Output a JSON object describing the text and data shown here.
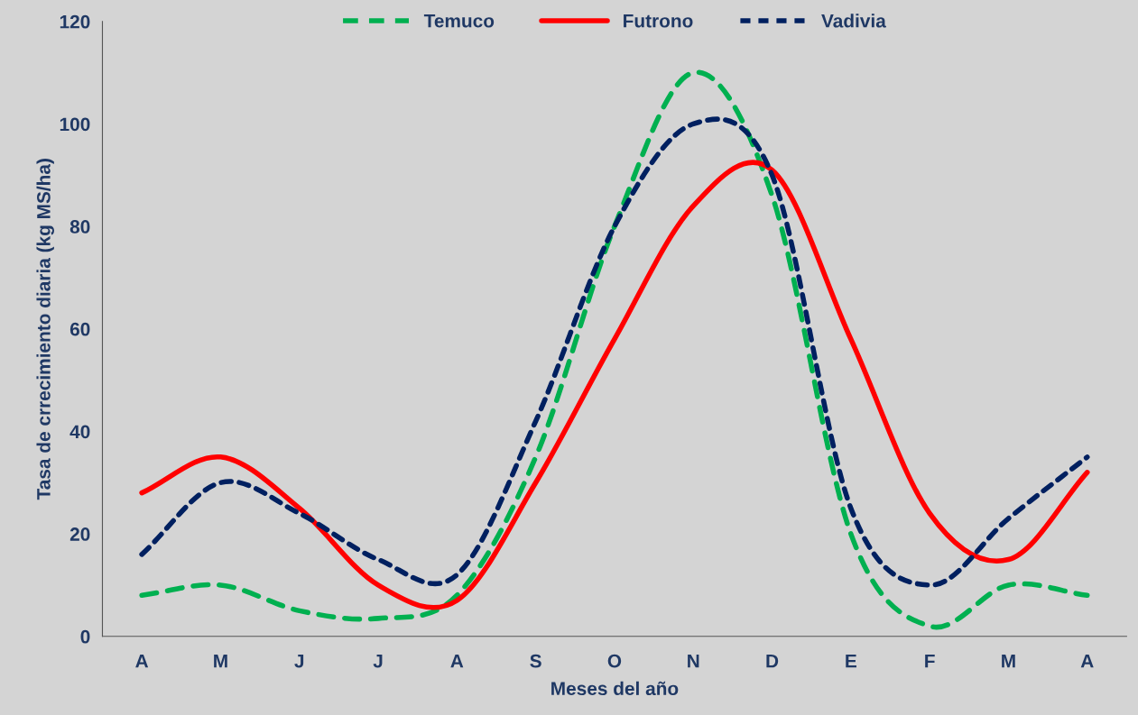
{
  "chart_data": {
    "type": "line",
    "xlabel": "Meses del año",
    "ylabel": "Tasa de crrecimiento diaria (kg MS/ha)",
    "categories": [
      "A",
      "M",
      "J",
      "J",
      "A",
      "S",
      "O",
      "N",
      "D",
      "E",
      "F",
      "M",
      "A"
    ],
    "series": [
      {
        "name": "Temuco",
        "color": "#00b050",
        "line_style": "dashed",
        "values": [
          8,
          10,
          5,
          3.5,
          8,
          35,
          80,
          110,
          86,
          20,
          2,
          10,
          8
        ]
      },
      {
        "name": "Futrono",
        "color": "#ff0000",
        "line_style": "solid",
        "values": [
          28,
          35,
          25,
          10,
          7,
          30,
          58,
          84,
          91,
          58,
          24,
          15,
          32
        ]
      },
      {
        "name": "Vadivia",
        "color": "#002060",
        "line_style": "dotted",
        "values": [
          16,
          30,
          24,
          15,
          12,
          42,
          80,
          100,
          90,
          25,
          10,
          23,
          35
        ]
      }
    ],
    "ylim": [
      0,
      120
    ],
    "yticks": [
      0,
      20,
      40,
      60,
      80,
      100,
      120
    ],
    "grid": false,
    "legend": "top",
    "marker": "none"
  }
}
